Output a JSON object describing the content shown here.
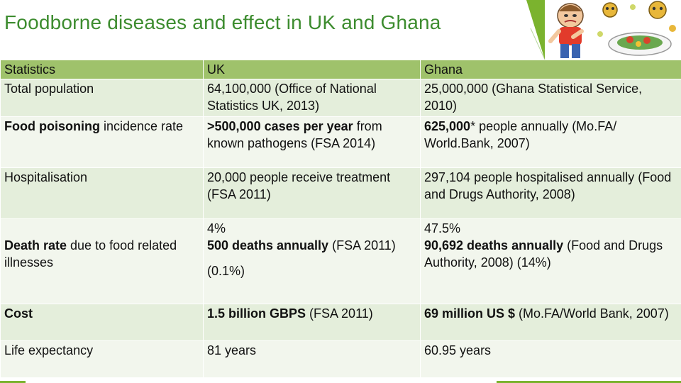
{
  "title": "Foodborne diseases and effect in UK and Ghana",
  "illustration": {
    "icon": "sick-person-and-food-icon"
  },
  "colors": {
    "title": "#3d8c2f",
    "header_row": "#9fc26b",
    "row_odd": "#e4eedb",
    "row_even": "#f2f6ed",
    "accent": "#7bb32e"
  },
  "table": {
    "headers": [
      "Statistics",
      "UK",
      "Ghana"
    ],
    "rows": [
      {
        "label": "Total population",
        "uk": "64,100,000 (Office of National Statistics UK, 2013)",
        "ghana": "25,000,000 (Ghana Statistical Service, 2010)"
      },
      {
        "label_bold": "Food poisoning",
        "label_rest": " incidence rate",
        "uk_bold": ">500,000 cases per year",
        "uk_rest": " from known pathogens (FSA 2014)",
        "ghana_bold": "625,000",
        "ghana_rest": "* people annually (Mo.FA/ World.Bank, 2007)"
      },
      {
        "label": "Hospitalisation",
        "uk": "20,000 people receive treatment (FSA 2011)",
        "ghana": "297,104 people hospitalised annually (Food and Drugs Authority, 2008)"
      },
      {
        "label_bold": "Death rate",
        "label_rest": " due to food related illnesses",
        "uk_pre": "4%",
        "uk_bold": "500 deaths annually",
        "uk_rest": " (FSA 2011)",
        "uk_post": "(0.1%)",
        "ghana_pre": "47.5%",
        "ghana_bold": "90,692 deaths  annually",
        "ghana_rest": " (Food and Drugs Authority, 2008) (14%)"
      },
      {
        "label": "Cost",
        "uk_bold": "1.5 billion GBPS",
        "uk_rest": " (FSA 2011)",
        "ghana_bold": "69 million US $",
        "ghana_rest": " (Mo.FA/World Bank, 2007)"
      },
      {
        "label": "Life expectancy",
        "uk": "81 years",
        "ghana": "60.95 years"
      }
    ]
  }
}
